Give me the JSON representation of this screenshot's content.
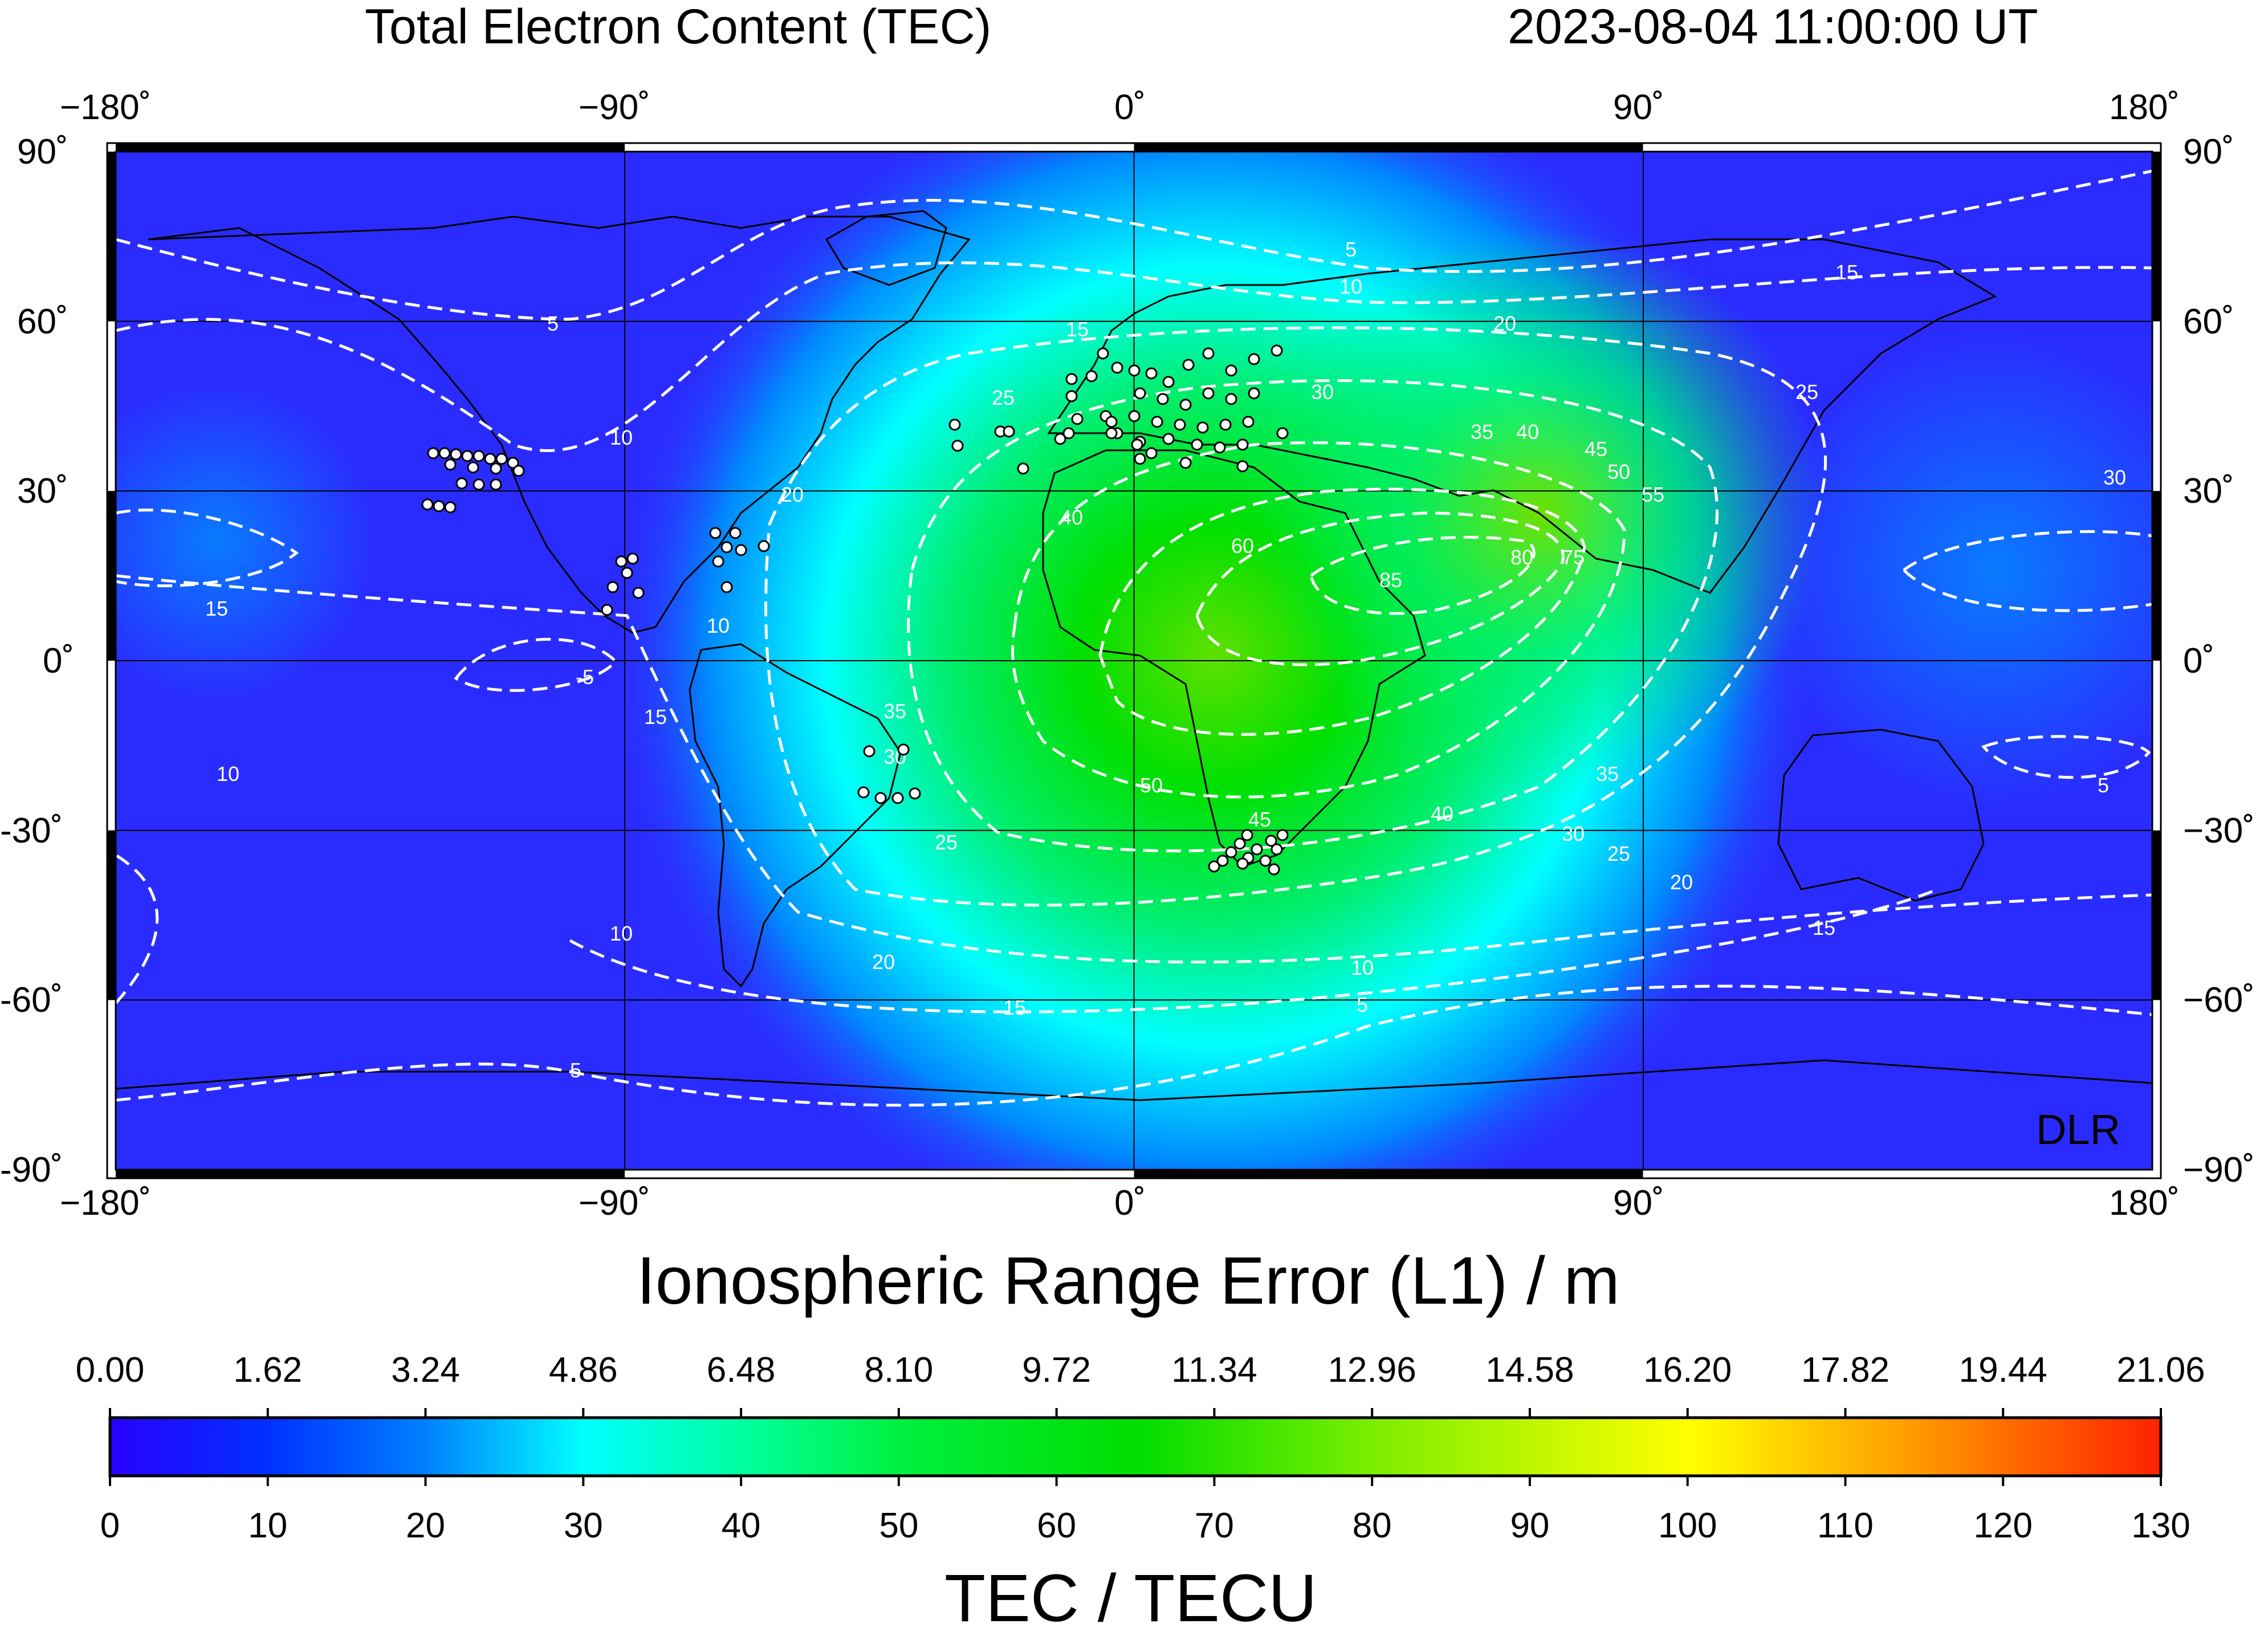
{
  "map": {
    "title": "Total Electron Content (TEC)",
    "timestamp": "2023-08-04  11:00:00 UT",
    "credit": "DLR",
    "lon_labels": [
      "−180˚",
      "−90˚",
      "0˚",
      "90˚",
      "180˚"
    ],
    "lat_labels_left": [
      "90˚",
      "60˚",
      "30˚",
      "0˚",
      "-30˚",
      "-60˚",
      "-90˚"
    ],
    "lat_labels_right": [
      "90˚",
      "60˚",
      "30˚",
      "0˚",
      "−30˚",
      "−60˚",
      "−90˚"
    ],
    "lon_range": [
      -180,
      180
    ],
    "lat_range": [
      -90,
      90
    ],
    "contour_levels": [
      5,
      10,
      15,
      20,
      25,
      30,
      35,
      40,
      45,
      50,
      55,
      60,
      65,
      70,
      75,
      80,
      85
    ],
    "colors": {
      "background_low": "#1a1aff",
      "mid": "#00ffff",
      "high": "#00e000",
      "contour": "#ffffff",
      "station": "#ffffff"
    }
  },
  "range_error_scale": {
    "title": "Ionospheric Range Error (L1) / m",
    "ticks": [
      "0.00",
      "1.62",
      "3.24",
      "4.86",
      "6.48",
      "8.10",
      "9.72",
      "11.34",
      "12.96",
      "14.58",
      "16.20",
      "17.82",
      "19.44",
      "21.06"
    ]
  },
  "tec_scale": {
    "title": "TEC / TECU",
    "ticks": [
      "0",
      "10",
      "20",
      "30",
      "40",
      "50",
      "60",
      "70",
      "80",
      "90",
      "100",
      "110",
      "120",
      "130"
    ],
    "min": 0,
    "max": 130,
    "colormap": [
      "#2000ff",
      "#0050ff",
      "#00a0ff",
      "#00ffff",
      "#00ff90",
      "#00ee30",
      "#00dd00",
      "#80ee00",
      "#ffff00",
      "#ff9900",
      "#ff2200"
    ]
  }
}
